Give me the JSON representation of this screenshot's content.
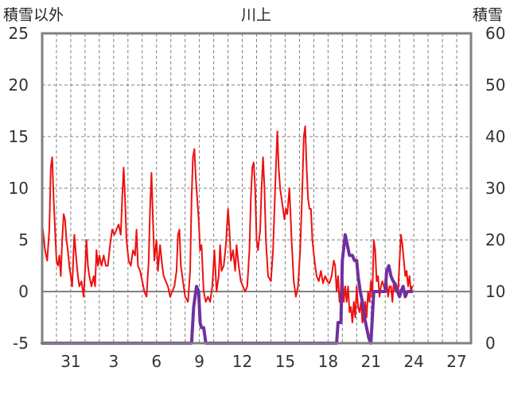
{
  "chart_data": {
    "type": "line",
    "title": "川上",
    "y_left_label": "積雪以外",
    "y_right_label": "積雪",
    "y_left_range": [
      -5,
      25
    ],
    "y_right_range": [
      0,
      60
    ],
    "y_left_ticks": [
      "25",
      "20",
      "15",
      "10",
      "5",
      "0",
      "-5"
    ],
    "y_right_ticks": [
      "60",
      "50",
      "40",
      "30",
      "20",
      "10",
      "0"
    ],
    "x_range": [
      0,
      30
    ],
    "x_ticks": [
      {
        "x": 2,
        "label": "31"
      },
      {
        "x": 5,
        "label": "3"
      },
      {
        "x": 8,
        "label": "6"
      },
      {
        "x": 11,
        "label": "9"
      },
      {
        "x": 14,
        "label": "12"
      },
      {
        "x": 17,
        "label": "15"
      },
      {
        "x": 20,
        "label": "18"
      },
      {
        "x": 23,
        "label": "21"
      },
      {
        "x": 26,
        "label": "24"
      },
      {
        "x": 29,
        "label": "27"
      }
    ],
    "grid": true,
    "colors": {
      "temperature": "#ee1111",
      "snow": "#7030a0",
      "axis": "#808080",
      "grid": "#808080"
    },
    "series": [
      {
        "axis": "left",
        "values": [
          [
            0.05,
            6
          ],
          [
            0.2,
            4
          ],
          [
            0.35,
            3
          ],
          [
            0.5,
            6
          ],
          [
            0.6,
            12
          ],
          [
            0.7,
            13
          ],
          [
            0.8,
            9
          ],
          [
            0.9,
            6
          ],
          [
            1.0,
            3
          ],
          [
            1.1,
            2.5
          ],
          [
            1.2,
            3.5
          ],
          [
            1.3,
            1.5
          ],
          [
            1.4,
            5
          ],
          [
            1.5,
            7.5
          ],
          [
            1.6,
            7
          ],
          [
            1.7,
            5
          ],
          [
            1.8,
            4
          ],
          [
            1.9,
            2.5
          ],
          [
            2.0,
            1.5
          ],
          [
            2.1,
            0.5
          ],
          [
            2.25,
            5.5
          ],
          [
            2.4,
            3
          ],
          [
            2.5,
            1.5
          ],
          [
            2.6,
            0.5
          ],
          [
            2.75,
            1
          ],
          [
            2.9,
            -0.5
          ],
          [
            3.0,
            2
          ],
          [
            3.1,
            5
          ],
          [
            3.2,
            2.5
          ],
          [
            3.3,
            1.5
          ],
          [
            3.45,
            0.5
          ],
          [
            3.6,
            1.5
          ],
          [
            3.7,
            0.5
          ],
          [
            3.8,
            4
          ],
          [
            3.9,
            2.5
          ],
          [
            4.0,
            3.5
          ],
          [
            4.15,
            2.5
          ],
          [
            4.3,
            3.5
          ],
          [
            4.45,
            2.5
          ],
          [
            4.6,
            2.5
          ],
          [
            4.75,
            4.5
          ],
          [
            4.9,
            6
          ],
          [
            5.05,
            5.5
          ],
          [
            5.2,
            6
          ],
          [
            5.35,
            6.5
          ],
          [
            5.5,
            5.5
          ],
          [
            5.6,
            9
          ],
          [
            5.7,
            12
          ],
          [
            5.8,
            9
          ],
          [
            5.9,
            5
          ],
          [
            6.05,
            3
          ],
          [
            6.2,
            2.5
          ],
          [
            6.35,
            4
          ],
          [
            6.5,
            3.5
          ],
          [
            6.6,
            6
          ],
          [
            6.7,
            2.5
          ],
          [
            6.85,
            2
          ],
          [
            7.0,
            1
          ],
          [
            7.15,
            0
          ],
          [
            7.3,
            -0.5
          ],
          [
            7.45,
            3
          ],
          [
            7.55,
            8
          ],
          [
            7.65,
            11.5
          ],
          [
            7.75,
            7
          ],
          [
            7.85,
            3
          ],
          [
            8.0,
            5
          ],
          [
            8.1,
            2
          ],
          [
            8.25,
            4.5
          ],
          [
            8.4,
            2.5
          ],
          [
            8.5,
            1.5
          ],
          [
            8.65,
            1
          ],
          [
            8.8,
            0.5
          ],
          [
            8.95,
            -0.5
          ],
          [
            9.1,
            0
          ],
          [
            9.25,
            0.5
          ],
          [
            9.4,
            2
          ],
          [
            9.5,
            5.5
          ],
          [
            9.6,
            6
          ],
          [
            9.7,
            2.5
          ],
          [
            9.85,
            1
          ],
          [
            10.0,
            -0.5
          ],
          [
            10.2,
            -1
          ],
          [
            10.35,
            2
          ],
          [
            10.45,
            9
          ],
          [
            10.55,
            13
          ],
          [
            10.65,
            13.8
          ],
          [
            10.75,
            11
          ],
          [
            10.85,
            9
          ],
          [
            10.95,
            7
          ],
          [
            11.05,
            4
          ],
          [
            11.15,
            4.5
          ],
          [
            11.3,
            0
          ],
          [
            11.45,
            -1
          ],
          [
            11.6,
            -0.5
          ],
          [
            11.75,
            -1
          ],
          [
            11.9,
            0.5
          ],
          [
            12.05,
            4
          ],
          [
            12.2,
            0
          ],
          [
            12.35,
            1.5
          ],
          [
            12.45,
            4.5
          ],
          [
            12.55,
            2
          ],
          [
            12.7,
            2.5
          ],
          [
            12.85,
            4.5
          ],
          [
            13.0,
            8
          ],
          [
            13.1,
            6
          ],
          [
            13.2,
            3
          ],
          [
            13.35,
            4
          ],
          [
            13.5,
            2
          ],
          [
            13.6,
            4.5
          ],
          [
            13.75,
            2.5
          ],
          [
            13.9,
            1
          ],
          [
            14.05,
            0.5
          ],
          [
            14.2,
            0
          ],
          [
            14.35,
            0.5
          ],
          [
            14.5,
            4
          ],
          [
            14.6,
            9
          ],
          [
            14.7,
            12
          ],
          [
            14.8,
            12.5
          ],
          [
            14.9,
            10
          ],
          [
            15.0,
            5
          ],
          [
            15.1,
            4
          ],
          [
            15.25,
            6
          ],
          [
            15.35,
            10
          ],
          [
            15.45,
            13
          ],
          [
            15.55,
            10
          ],
          [
            15.65,
            5
          ],
          [
            15.8,
            1.5
          ],
          [
            16.0,
            1
          ],
          [
            16.15,
            4
          ],
          [
            16.25,
            8
          ],
          [
            16.35,
            12
          ],
          [
            16.45,
            15.5
          ],
          [
            16.55,
            12
          ],
          [
            16.65,
            10
          ],
          [
            16.75,
            9
          ],
          [
            16.85,
            8
          ],
          [
            16.95,
            7
          ],
          [
            17.05,
            8
          ],
          [
            17.15,
            7.5
          ],
          [
            17.3,
            10
          ],
          [
            17.45,
            5
          ],
          [
            17.6,
            1
          ],
          [
            17.75,
            -0.5
          ],
          [
            17.9,
            0.5
          ],
          [
            18.05,
            4
          ],
          [
            18.2,
            10
          ],
          [
            18.3,
            15
          ],
          [
            18.4,
            16
          ],
          [
            18.5,
            12
          ],
          [
            18.6,
            9
          ],
          [
            18.7,
            8
          ],
          [
            18.8,
            8
          ],
          [
            18.9,
            5
          ],
          [
            19.05,
            3
          ],
          [
            19.2,
            1.5
          ],
          [
            19.35,
            1
          ],
          [
            19.5,
            2
          ],
          [
            19.65,
            0.8
          ],
          [
            19.8,
            1.5
          ],
          [
            19.95,
            1
          ],
          [
            20.1,
            0.8
          ],
          [
            20.25,
            1.5
          ],
          [
            20.4,
            3
          ],
          [
            20.5,
            2.5
          ],
          [
            20.6,
            0
          ],
          [
            20.7,
            1.5
          ],
          [
            20.8,
            -1
          ],
          [
            20.9,
            0
          ],
          [
            21.0,
            2
          ],
          [
            21.1,
            -1
          ],
          [
            21.2,
            0.5
          ],
          [
            21.3,
            -1
          ],
          [
            21.4,
            0.5
          ],
          [
            21.5,
            -2
          ],
          [
            21.6,
            -1.5
          ],
          [
            21.7,
            -3
          ],
          [
            21.8,
            -1
          ],
          [
            21.9,
            -2.5
          ],
          [
            22.0,
            0.5
          ],
          [
            22.1,
            -1.5
          ],
          [
            22.2,
            -2
          ],
          [
            22.3,
            -1
          ],
          [
            22.4,
            -3
          ],
          [
            22.5,
            -2.5
          ],
          [
            22.6,
            -1
          ],
          [
            22.7,
            -2.5
          ],
          [
            22.8,
            0
          ],
          [
            22.9,
            -1
          ],
          [
            23.0,
            1
          ],
          [
            23.1,
            -0.5
          ],
          [
            23.2,
            5
          ],
          [
            23.3,
            4
          ],
          [
            23.4,
            1
          ],
          [
            23.5,
            1.5
          ],
          [
            23.6,
            -0.5
          ],
          [
            23.7,
            0.5
          ],
          [
            23.8,
            1
          ],
          [
            23.9,
            0.5
          ],
          [
            24.0,
            0
          ],
          [
            24.1,
            1
          ],
          [
            24.2,
            -0.5
          ],
          [
            24.3,
            0.5
          ],
          [
            24.4,
            0.5
          ],
          [
            24.5,
            -1
          ],
          [
            24.6,
            1
          ],
          [
            24.7,
            0
          ],
          [
            24.8,
            0.5
          ],
          [
            24.9,
            0
          ],
          [
            25.0,
            3
          ],
          [
            25.1,
            5.5
          ],
          [
            25.2,
            4.5
          ],
          [
            25.3,
            3
          ],
          [
            25.4,
            1.5
          ],
          [
            25.5,
            2
          ],
          [
            25.6,
            0.5
          ],
          [
            25.7,
            1.5
          ],
          [
            25.8,
            0
          ],
          [
            25.9,
            0.5
          ]
        ]
      },
      {
        "axis": "right",
        "values": [
          [
            0.0,
            0
          ],
          [
            10.45,
            0
          ],
          [
            10.6,
            7
          ],
          [
            10.8,
            11
          ],
          [
            10.95,
            10
          ],
          [
            11.05,
            4
          ],
          [
            11.15,
            3
          ],
          [
            11.3,
            3
          ],
          [
            11.45,
            0
          ],
          [
            11.6,
            0
          ],
          [
            20.6,
            0
          ],
          [
            20.7,
            4
          ],
          [
            20.9,
            4
          ],
          [
            21.0,
            16
          ],
          [
            21.2,
            21
          ],
          [
            21.35,
            19
          ],
          [
            21.5,
            17
          ],
          [
            21.7,
            17
          ],
          [
            21.85,
            16
          ],
          [
            22.0,
            16
          ],
          [
            22.1,
            13
          ],
          [
            22.25,
            10
          ],
          [
            22.4,
            8
          ],
          [
            22.55,
            5
          ],
          [
            22.7,
            3
          ],
          [
            22.85,
            1
          ],
          [
            23.0,
            0
          ],
          [
            23.1,
            5
          ],
          [
            23.2,
            10
          ],
          [
            23.4,
            10
          ],
          [
            23.6,
            10
          ],
          [
            23.8,
            10
          ],
          [
            24.0,
            10
          ],
          [
            24.1,
            14
          ],
          [
            24.25,
            15
          ],
          [
            24.4,
            13
          ],
          [
            24.55,
            12
          ],
          [
            24.7,
            11.5
          ],
          [
            24.85,
            10
          ],
          [
            25.0,
            9
          ],
          [
            25.1,
            10
          ],
          [
            25.25,
            11
          ],
          [
            25.4,
            9
          ],
          [
            25.55,
            10
          ],
          [
            25.7,
            10
          ],
          [
            25.85,
            10
          ]
        ]
      }
    ]
  }
}
